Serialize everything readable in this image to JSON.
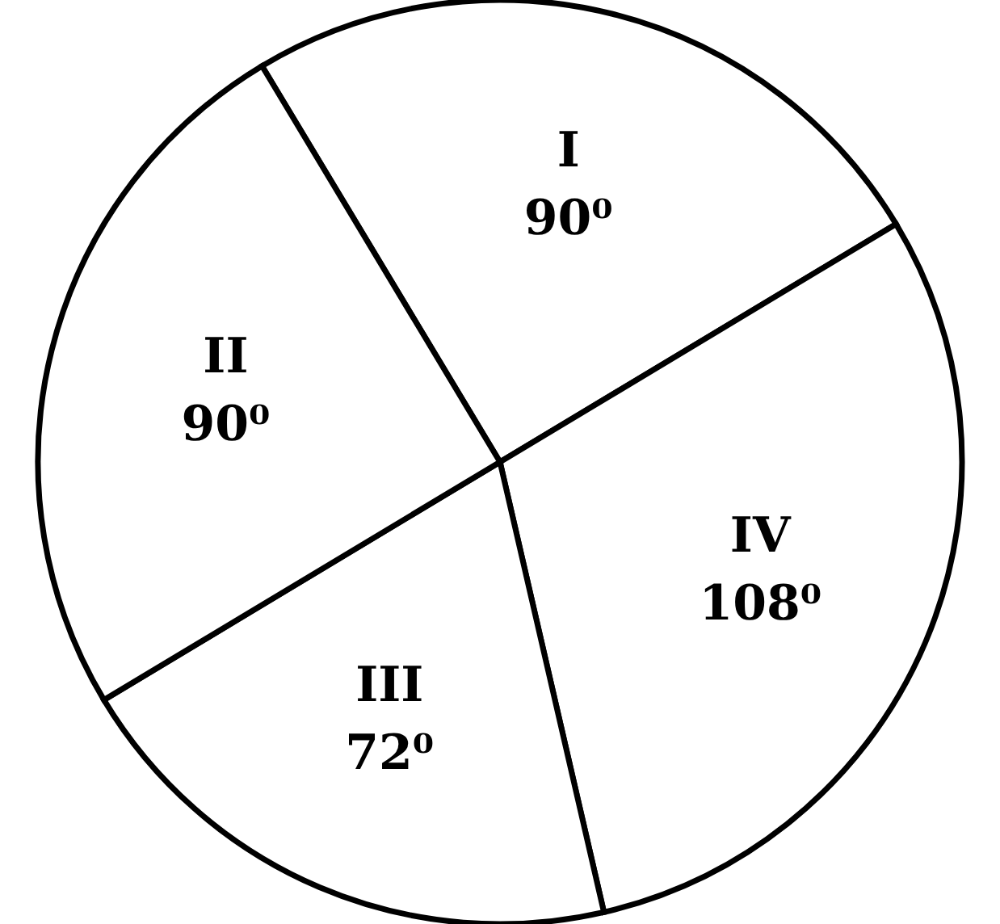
{
  "chart_data": {
    "type": "pie",
    "categories": [
      "I",
      "IV",
      "III",
      "II"
    ],
    "values": [
      90,
      108,
      72,
      90
    ],
    "value_labels": [
      "90⁰",
      "108⁰",
      "72⁰",
      "90⁰"
    ],
    "colors": [
      "#ffffff",
      "#ffffff",
      "#ffffff",
      "#ffffff"
    ]
  }
}
